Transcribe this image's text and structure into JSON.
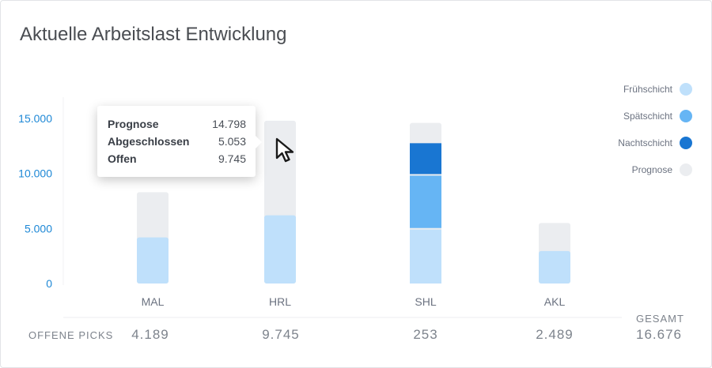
{
  "title": "Aktuelle Arbeitslast Entwicklung",
  "colors": {
    "fruehschicht": "#bfe0fb",
    "spaetschicht": "#66b5f4",
    "nachtschicht": "#1976d2",
    "prognose": "#ebedf0",
    "axis": "#1e88d6"
  },
  "chart_data": {
    "type": "bar",
    "categories": [
      "MAL",
      "HRL",
      "SHL",
      "AKL"
    ],
    "ylim": [
      0,
      15000
    ],
    "yticks": [
      "0",
      "5.000",
      "10.000",
      "15.000"
    ],
    "ytick_values": [
      0,
      5000,
      10000,
      15000
    ],
    "series": [
      {
        "name": "Frühschicht",
        "values": [
          4189,
          6200,
          4900,
          2950
        ]
      },
      {
        "name": "Spätschicht",
        "values": [
          0,
          0,
          4900,
          0
        ]
      },
      {
        "name": "Nachtschicht",
        "values": [
          0,
          0,
          2950,
          0
        ]
      },
      {
        "name": "Prognose",
        "values": [
          8300,
          14798,
          14600,
          5500
        ]
      }
    ],
    "legend": [
      "Frühschicht",
      "Spätschicht",
      "Nachtschicht",
      "Prognose"
    ],
    "legend_position": "right"
  },
  "tooltip": {
    "rows": [
      {
        "label": "Prognose",
        "value": "14.798"
      },
      {
        "label": "Abgeschlossen",
        "value": "5.053"
      },
      {
        "label": "Offen",
        "value": "9.745"
      }
    ]
  },
  "table": {
    "row_label": "OFFENE PICKS",
    "values": [
      "4.189",
      "9.745",
      "253",
      "2.489"
    ],
    "total_label": "GESAMT",
    "total_value": "16.676"
  },
  "cursor": "cursor-arrow-icon"
}
